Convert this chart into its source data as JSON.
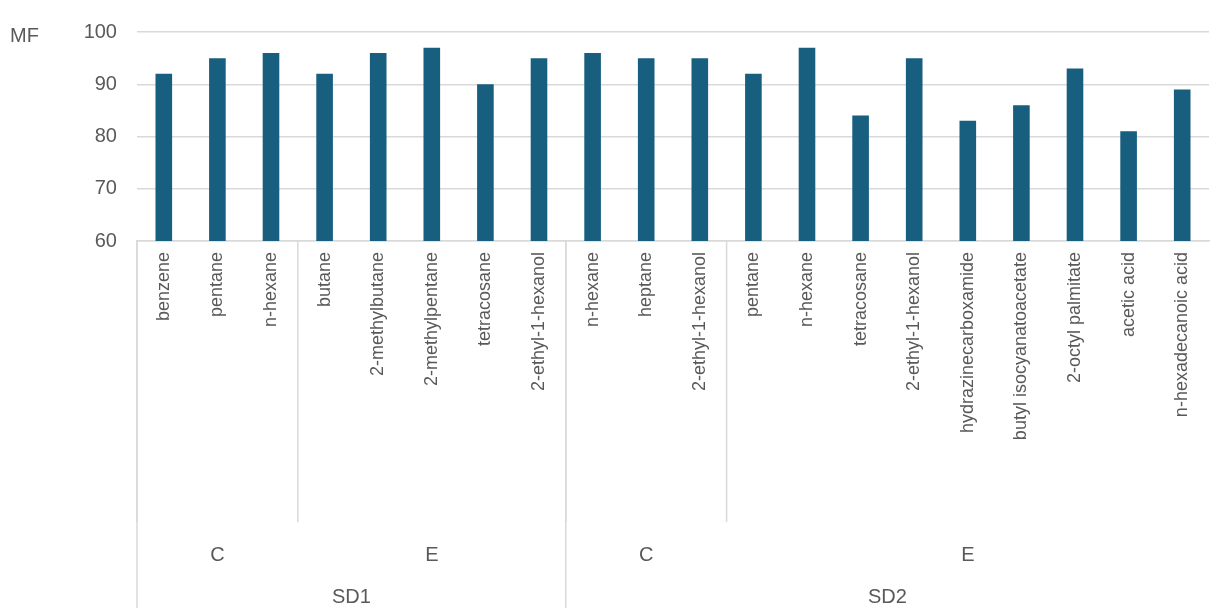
{
  "chart_data": {
    "type": "bar",
    "ylabel": "MF",
    "categories": [
      "benzene",
      "pentane",
      "n-hexane",
      "butane",
      "2-methylbutane",
      "2-methylpentane",
      "tetracosane",
      "2-ethyl-1-hexanol",
      "n-hexane",
      "heptane",
      "2-ethyl-1-hexanol",
      "pentane",
      "n-hexane",
      "tetracosane",
      "2-ethyl-1-hexanol",
      "hydrazinecarboxamide",
      "butyl isocyanatoacetate",
      "2-octyl palmitate",
      "acetic acid",
      "n-hexadecanoic acid"
    ],
    "values": [
      92,
      95,
      96,
      92,
      96,
      97,
      90,
      95,
      96,
      95,
      95,
      92,
      97,
      84,
      95,
      83,
      86,
      93,
      81,
      89
    ],
    "color": "#175e7f",
    "ylim": [
      60,
      100
    ],
    "yticks": [
      60,
      70,
      80,
      90,
      100
    ],
    "grid": "y",
    "annotations": [
      "C",
      "E",
      "C",
      "E",
      "SD1",
      "SD2"
    ]
  }
}
